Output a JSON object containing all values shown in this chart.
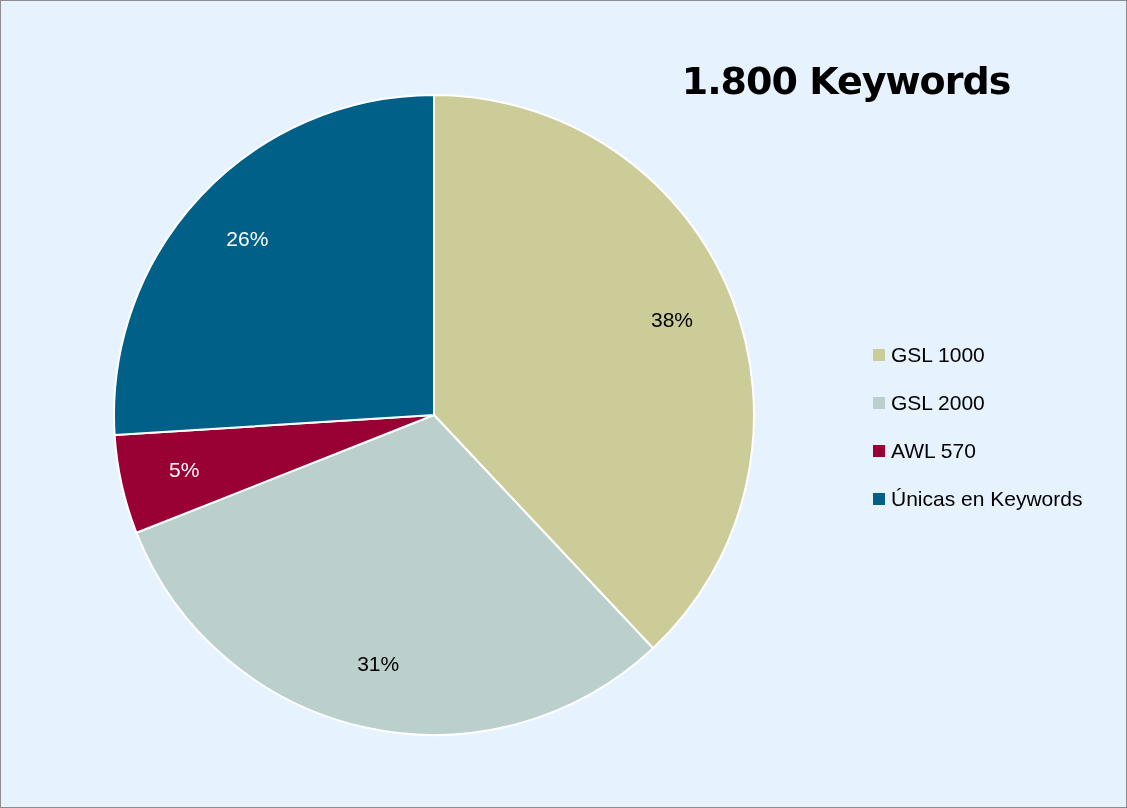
{
  "chart_data": {
    "type": "pie",
    "title": "1.800 Keywords",
    "categories": [
      "GSL 1000",
      "GSL 2000",
      "AWL 570",
      "Únicas en Keywords"
    ],
    "values": [
      38,
      31,
      5,
      26
    ],
    "value_labels": [
      "38%",
      "31%",
      "5%",
      "26%"
    ],
    "colors": [
      "#cccc99",
      "#bbd0cd",
      "#990033",
      "#006088"
    ],
    "legend": "right"
  }
}
